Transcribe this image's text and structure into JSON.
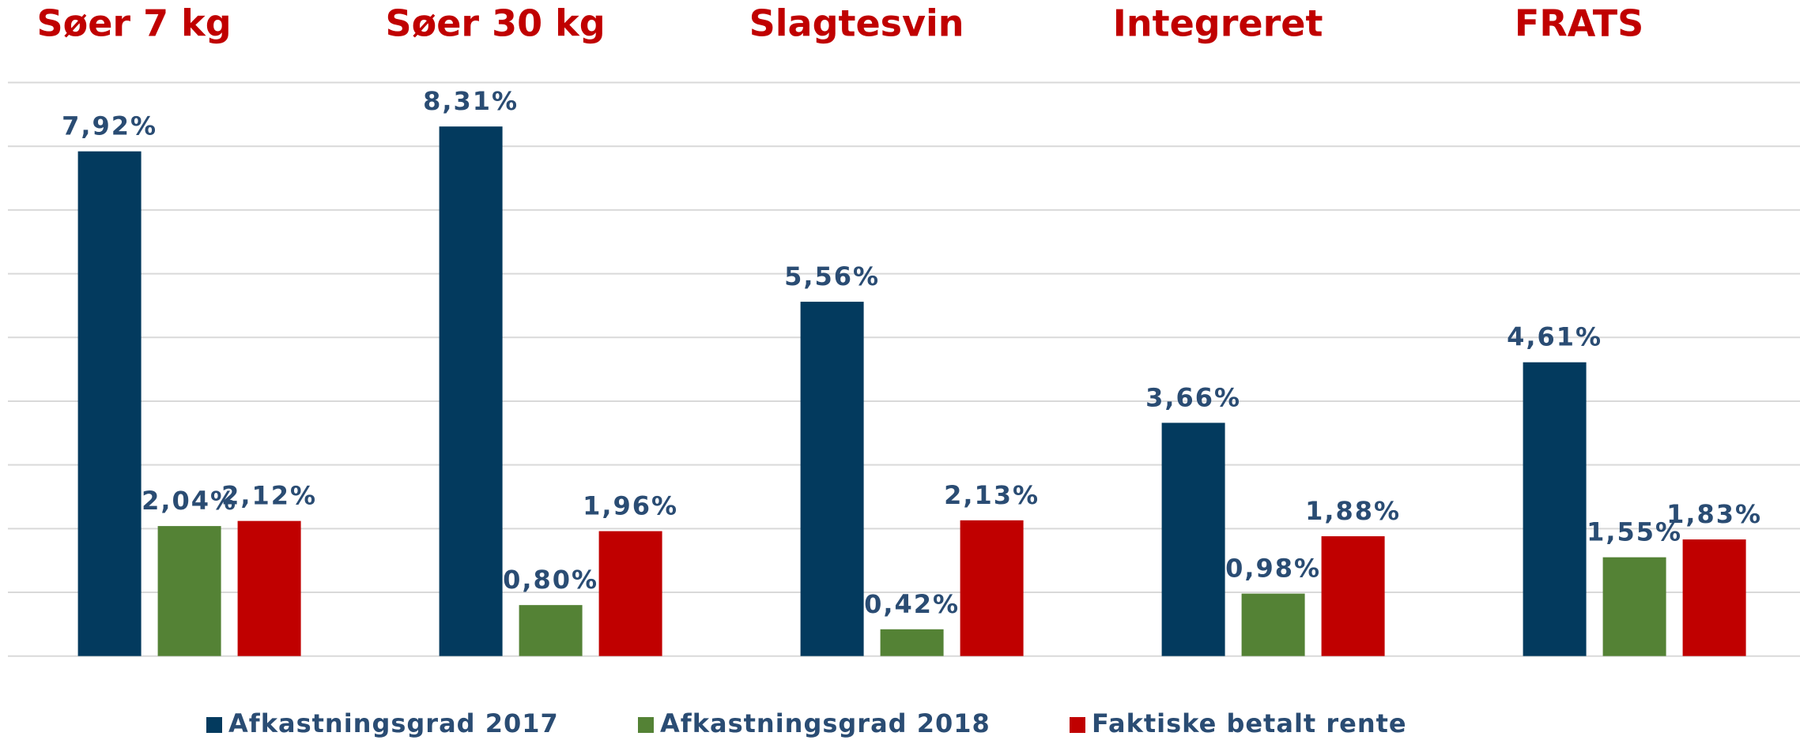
{
  "chart_data": {
    "type": "bar",
    "categories": [
      "Søer 7 kg",
      "Søer 30 kg",
      "Slagtesvin",
      "Integreret",
      "FRATS"
    ],
    "series": [
      {
        "name": "Afkastningsgrad 2017",
        "color": "#033a5e",
        "values": [
          7.92,
          8.31,
          5.56,
          3.66,
          4.61
        ],
        "value_labels": [
          "7,92%",
          "8,31%",
          "5,56%",
          "3,66%",
          "4,61%"
        ]
      },
      {
        "name": "Afkastningsgrad 2018",
        "color": "#548235",
        "values": [
          2.04,
          0.8,
          0.42,
          0.98,
          1.55
        ],
        "value_labels": [
          "2,04%",
          "0,80%",
          "0,42%",
          "0,98%",
          "1,55%"
        ]
      },
      {
        "name": "Faktiske betalt rente",
        "color": "#c00000",
        "values": [
          2.12,
          1.96,
          2.13,
          1.88,
          1.83
        ],
        "value_labels": [
          "2,12%",
          "1,96%",
          "2,13%",
          "1,88%",
          "1,83%"
        ]
      }
    ],
    "ylim": [
      0,
      9
    ],
    "yticks": [
      0,
      1,
      2,
      3,
      4,
      5,
      6,
      7,
      8,
      9
    ],
    "grid": true,
    "legend": "bottom"
  }
}
